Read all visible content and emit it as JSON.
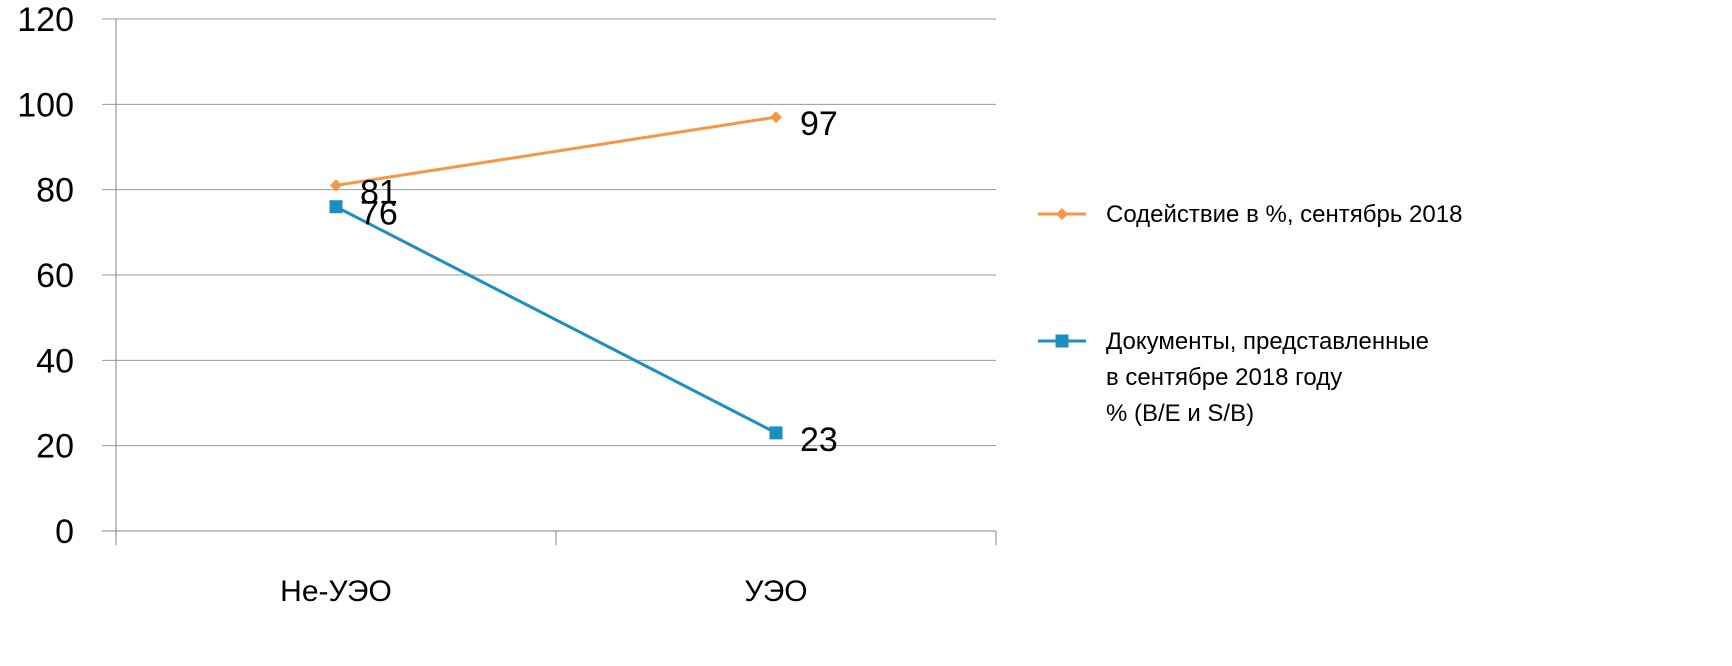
{
  "chart_data": {
    "type": "line",
    "categories": [
      "Не-УЭО",
      "УЭО"
    ],
    "ylim": [
      0,
      120
    ],
    "yticks": [
      0,
      20,
      40,
      60,
      80,
      100,
      120
    ],
    "grid": true,
    "legend_position": "right",
    "series": [
      {
        "name": "Содействие в %, сентябрь 2018",
        "name_lines": [
          "Содействие в %, сентябрь 2018"
        ],
        "values": [
          81,
          97
        ],
        "color": "#f79646",
        "marker": "diamond"
      },
      {
        "name": "Документы, представленные в сентябре 2018 году % (B/E и S/B)",
        "name_lines": [
          "Документы, представленные",
          "в сентябре 2018 году",
          "% (B/E и S/B)"
        ],
        "values": [
          76,
          23
        ],
        "color": "#1b8ec2",
        "marker": "square"
      }
    ]
  }
}
